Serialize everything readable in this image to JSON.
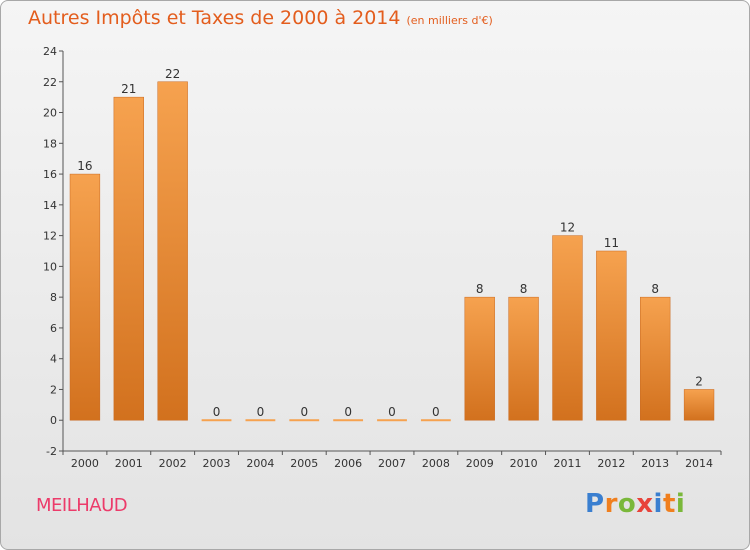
{
  "chart_data": {
    "type": "bar",
    "title": "Autres Impôts et Taxes de 2000 à 2014",
    "subtitle": "(en milliers d'€)",
    "categories": [
      "2000",
      "2001",
      "2002",
      "2003",
      "2004",
      "2005",
      "2006",
      "2007",
      "2008",
      "2009",
      "2010",
      "2011",
      "2012",
      "2013",
      "2014"
    ],
    "values": [
      16,
      21,
      22,
      0,
      0,
      0,
      0,
      0,
      0,
      8,
      8,
      12,
      11,
      8,
      2
    ],
    "ylim": [
      -2,
      24
    ],
    "yticks": [
      -2,
      0,
      2,
      4,
      6,
      8,
      10,
      12,
      14,
      16,
      18,
      20,
      22,
      24
    ],
    "xlabel": "",
    "ylabel": "",
    "grid": false,
    "bar_color_light": "#f6a24f",
    "bar_color_dark": "#d2711e"
  },
  "commune_name": "MEILHAUD",
  "logo": {
    "letters": [
      "P",
      "r",
      "o",
      "x",
      "i",
      "t",
      "i"
    ],
    "colors": [
      "#3a7fd0",
      "#f07f1e",
      "#7ab83a",
      "#e8433a",
      "#3a7fd0",
      "#f07f1e",
      "#7ab83a"
    ]
  }
}
